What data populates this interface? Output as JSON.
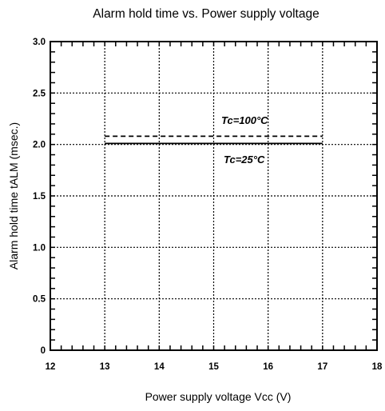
{
  "chart_data": {
    "type": "line",
    "title": "Alarm hold time vs. Power supply voltage",
    "xlabel": "Power supply voltage  Vcc (V)",
    "ylabel": "Alarm hold time  tALM (msec.)",
    "xlim": [
      12,
      18
    ],
    "ylim": [
      0,
      3.0
    ],
    "x_ticks": [
      "12",
      "13",
      "14",
      "15",
      "16",
      "17",
      "18"
    ],
    "y_ticks": [
      "0",
      "0.5",
      "1.0",
      "1.5",
      "2.0",
      "2.5",
      "3.0"
    ],
    "grid": true,
    "series": [
      {
        "name": "Tc=100°C",
        "style": "dashed",
        "x": [
          13,
          17
        ],
        "y": [
          2.08,
          2.08
        ]
      },
      {
        "name": "Tc=25°C",
        "style": "solid",
        "x": [
          13,
          17
        ],
        "y": [
          2.01,
          2.01
        ]
      }
    ],
    "annotations": [
      "Tc=100°C",
      "Tc=25°C"
    ]
  }
}
